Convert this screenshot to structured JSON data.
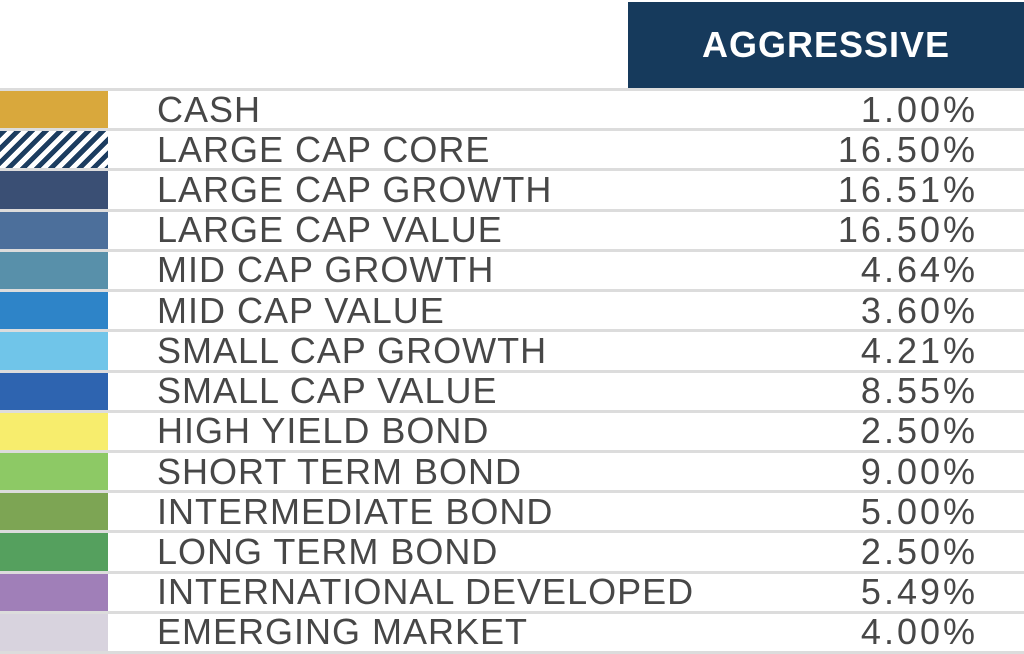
{
  "header": {
    "label": "AGGRESSIVE"
  },
  "colors": {
    "header_bg": "#163A5C",
    "header_text": "#FFFFFF",
    "separator": "#DCDCDC",
    "row_text": "#474747",
    "hatch_navy": "#1C3D60",
    "hatch_white": "#FFFFFF"
  },
  "rows": [
    {
      "label": "CASH",
      "value": "1.00%",
      "swatch_color": "#D9A83C",
      "hatch": false,
      "swatch_name": "gold"
    },
    {
      "label": "LARGE CAP CORE",
      "value": "16.50%",
      "swatch_color": null,
      "hatch": true,
      "swatch_name": "navy-white-diagonal-stripes"
    },
    {
      "label": "LARGE CAP GROWTH",
      "value": "16.51%",
      "swatch_color": "#3A4F74",
      "hatch": false,
      "swatch_name": "dark-slate-blue"
    },
    {
      "label": "LARGE CAP VALUE",
      "value": "16.50%",
      "swatch_color": "#4C6F9B",
      "hatch": false,
      "swatch_name": "medium-slate-blue"
    },
    {
      "label": "MID CAP GROWTH",
      "value": "4.64%",
      "swatch_color": "#5890AA",
      "hatch": false,
      "swatch_name": "steel-blue"
    },
    {
      "label": "MID CAP VALUE",
      "value": "3.60%",
      "swatch_color": "#2E84C8",
      "hatch": false,
      "swatch_name": "bright-blue"
    },
    {
      "label": "SMALL CAP GROWTH",
      "value": "4.21%",
      "swatch_color": "#70C5E9",
      "hatch": false,
      "swatch_name": "sky-blue"
    },
    {
      "label": "SMALL CAP VALUE",
      "value": "8.55%",
      "swatch_color": "#2E64B0",
      "hatch": false,
      "swatch_name": "royal-blue"
    },
    {
      "label": "HIGH YIELD BOND",
      "value": "2.50%",
      "swatch_color": "#F7ED6D",
      "hatch": false,
      "swatch_name": "yellow"
    },
    {
      "label": "SHORT TERM BOND",
      "value": "9.00%",
      "swatch_color": "#8DC965",
      "hatch": false,
      "swatch_name": "light-green"
    },
    {
      "label": "INTERMEDIATE BOND",
      "value": "5.00%",
      "swatch_color": "#7DA554",
      "hatch": false,
      "swatch_name": "olive-green"
    },
    {
      "label": "LONG TERM BOND",
      "value": "2.50%",
      "swatch_color": "#55A05E",
      "hatch": false,
      "swatch_name": "green"
    },
    {
      "label": "INTERNATIONAL DEVELOPED",
      "value": "5.49%",
      "swatch_color": "#A07FB8",
      "hatch": false,
      "swatch_name": "purple"
    },
    {
      "label": "EMERGING MARKET",
      "value": "4.00%",
      "swatch_color": "#D8D3DE",
      "hatch": false,
      "swatch_name": "light-lavender"
    }
  ],
  "chart_data": {
    "type": "table",
    "title": "AGGRESSIVE",
    "categories": [
      "CASH",
      "LARGE CAP CORE",
      "LARGE CAP GROWTH",
      "LARGE CAP VALUE",
      "MID CAP GROWTH",
      "MID CAP VALUE",
      "SMALL CAP GROWTH",
      "SMALL CAP VALUE",
      "HIGH YIELD BOND",
      "SHORT TERM BOND",
      "INTERMEDIATE BOND",
      "LONG TERM BOND",
      "INTERNATIONAL DEVELOPED",
      "EMERGING MARKET"
    ],
    "values": [
      1.0,
      16.5,
      16.51,
      16.5,
      4.64,
      3.6,
      4.21,
      8.55,
      2.5,
      9.0,
      5.0,
      2.5,
      5.49,
      4.0
    ],
    "value_unit": "%",
    "columns": [
      "swatch",
      "asset_class",
      "allocation_percent"
    ],
    "legend_position": "left-swatch-column",
    "grid": "horizontal-separators"
  }
}
